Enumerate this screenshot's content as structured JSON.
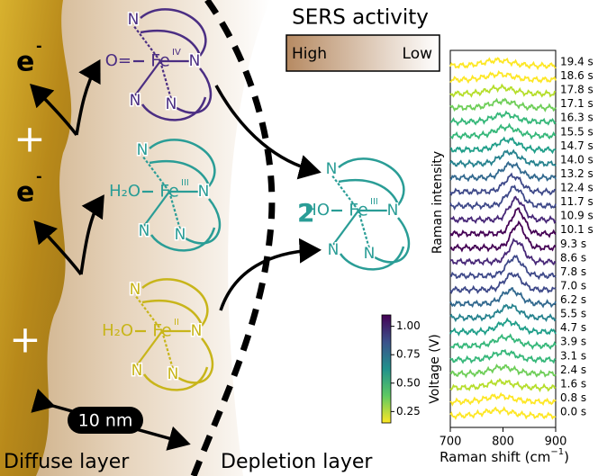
{
  "labels": {
    "sers_title": "SERS activity",
    "high": "High",
    "low": "Low",
    "electron_top": "e",
    "electron_top_charge": "-",
    "electron_mid": "e",
    "electron_mid_charge": "-",
    "plus_top": "+",
    "plus_bottom": "+",
    "scale": "10 nm",
    "diffuse": "Diffuse layer",
    "depletion": "Depletion layer",
    "factor": "2"
  },
  "complexes": [
    {
      "metal": "Fe",
      "oxidation": "IV",
      "axial": "O=",
      "n_labels": [
        "N",
        "N",
        "N",
        "N"
      ]
    },
    {
      "metal": "Fe",
      "oxidation": "III",
      "axial": "H₂O",
      "n_labels": [
        "N",
        "N",
        "N",
        "N"
      ]
    },
    {
      "metal": "Fe",
      "oxidation": "II",
      "axial": "H₂O",
      "n_labels": [
        "N",
        "N",
        "N",
        "N"
      ]
    },
    {
      "metal": "Fe",
      "oxidation": "III",
      "axial": "HO",
      "n_labels": [
        "N",
        "N",
        "N",
        "N"
      ]
    }
  ],
  "spectra": {
    "times": [
      "0.0 s",
      "0.8 s",
      "1.6 s",
      "2.4 s",
      "3.1 s",
      "3.9 s",
      "4.7 s",
      "5.5 s",
      "6.2 s",
      "7.0 s",
      "7.8 s",
      "8.6 s",
      "9.3 s",
      "10.1 s",
      "10.9 s",
      "11.7 s",
      "12.4 s",
      "13.2 s",
      "14.0 s",
      "14.7 s",
      "15.5 s",
      "16.3 s",
      "17.1 s",
      "17.8 s",
      "18.6 s",
      "19.4 s"
    ],
    "xlabel": "Raman shift (cm",
    "xlabel_sup": "−1",
    "xlabel_end": ")",
    "ylabel": "Raman intensity",
    "xlim": [
      700,
      900
    ],
    "xticks": [
      700,
      800,
      900
    ],
    "colorbar": {
      "label": "Voltage (V)",
      "lim": [
        0.15,
        1.1
      ],
      "ticks": [
        {
          "value": 1,
          "label": "1.00"
        },
        {
          "value": 0.75,
          "label": "0.75"
        },
        {
          "value": 0.5,
          "label": "0.50"
        },
        {
          "value": 0.25,
          "label": "0.25"
        }
      ]
    }
  }
}
